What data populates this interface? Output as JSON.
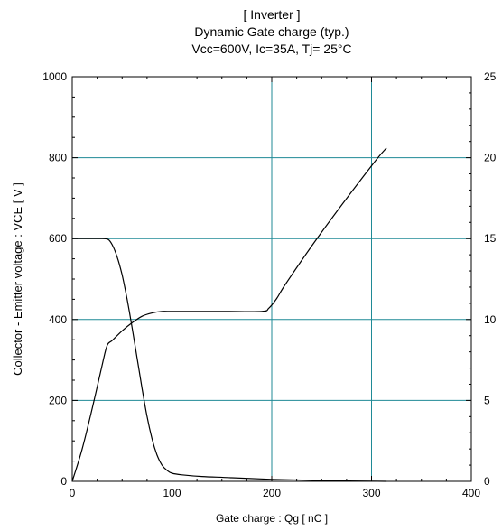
{
  "chart_data": {
    "type": "line",
    "title_lines": [
      "[ Inverter ]",
      "Dynamic Gate charge  (typ.)",
      "Vcc=600V, Ic=35A, Tj= 25°C"
    ],
    "xlabel": "Gate charge  :  Qg  [ nC ]",
    "ylabel": "Collector - Emitter voltage  :  VCE  [ V ]",
    "ylabel_right": "",
    "xlim": [
      0,
      400
    ],
    "ylim": [
      0,
      1000
    ],
    "ylim_right": [
      0,
      25
    ],
    "xticks": [
      "0",
      "100",
      "200",
      "300",
      "400"
    ],
    "yticks": [
      "0",
      "200",
      "400",
      "600",
      "800",
      "1000"
    ],
    "yticks_right": [
      "0",
      "5",
      "10",
      "15",
      "20",
      "25"
    ],
    "grid": true,
    "grid_color": "#1f8a96",
    "line_color": "#000000",
    "series": [
      {
        "axis": "left",
        "x": [
          0,
          10,
          30,
          36,
          40,
          45,
          50,
          55,
          60,
          65,
          70,
          75,
          80,
          85,
          90,
          95,
          100,
          110,
          130,
          160,
          200,
          250,
          315
        ],
        "y": [
          600,
          600,
          600,
          598,
          585,
          555,
          510,
          450,
          380,
          305,
          230,
          160,
          105,
          65,
          40,
          27,
          20,
          16,
          12,
          9,
          5,
          2,
          0
        ]
      },
      {
        "axis": "right",
        "x": [
          0,
          10,
          20,
          30,
          35,
          40,
          50,
          60,
          70,
          80,
          90,
          100,
          150,
          190,
          197,
          205,
          215,
          250,
          300,
          315
        ],
        "y": [
          0,
          2.0,
          4.5,
          7.2,
          8.4,
          8.7,
          9.3,
          9.8,
          10.2,
          10.4,
          10.5,
          10.5,
          10.5,
          10.5,
          10.7,
          11.3,
          12.3,
          15.4,
          19.5,
          20.6
        ]
      }
    ]
  }
}
